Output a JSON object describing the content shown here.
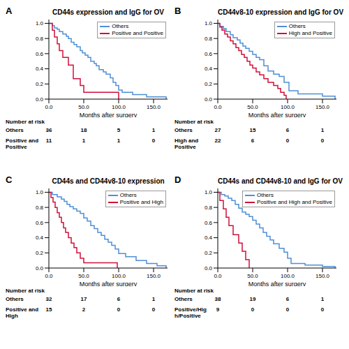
{
  "chart_data": [
    {
      "panel": "A",
      "type": "line",
      "title": "CD44s expression and IgG for OV",
      "x_label": "Months after surgery",
      "xlim": [
        0,
        170
      ],
      "xticks": [
        {
          "value": 0,
          "label": "0.0"
        },
        {
          "value": 50,
          "label": "50.0"
        },
        {
          "value": 100,
          "label": "100.0"
        },
        {
          "value": 150,
          "label": "150.0"
        }
      ],
      "ylim": [
        0,
        1.05
      ],
      "yticks": [
        {
          "value": 0,
          "label": "0.0"
        },
        {
          "value": 0.2,
          "label": "0.2"
        },
        {
          "value": 0.4,
          "label": "0.4"
        },
        {
          "value": 0.6,
          "label": "0.6"
        },
        {
          "value": 0.8,
          "label": "0.8"
        },
        {
          "value": 1,
          "label": "1.0"
        }
      ],
      "legend": "top-right",
      "series": [
        {
          "name": "Others",
          "color": "#4f8fd6",
          "line_style": "step",
          "x": [
            0,
            5,
            8,
            12,
            15,
            20,
            25,
            28,
            32,
            36,
            40,
            45,
            48,
            52,
            56,
            60,
            65,
            68,
            72,
            78,
            82,
            88,
            92,
            96,
            100,
            105,
            120,
            140,
            168
          ],
          "values": [
            1.0,
            0.97,
            0.94,
            0.92,
            0.89,
            0.86,
            0.83,
            0.8,
            0.75,
            0.72,
            0.69,
            0.64,
            0.61,
            0.58,
            0.55,
            0.5,
            0.47,
            0.44,
            0.39,
            0.36,
            0.33,
            0.28,
            0.22,
            0.18,
            0.12,
            0.09,
            0.06,
            0.03,
            0.0
          ]
        },
        {
          "name": "Positive and Positive",
          "color": "#d0103a",
          "line_style": "step",
          "x": [
            0,
            5,
            8,
            12,
            15,
            20,
            28,
            35,
            45,
            50,
            100
          ],
          "values": [
            1.0,
            0.91,
            0.82,
            0.73,
            0.64,
            0.55,
            0.45,
            0.27,
            0.18,
            0.09,
            0.0
          ]
        }
      ],
      "risk_table": {
        "title": "Number at risk",
        "x": [
          0,
          50,
          100,
          150
        ],
        "rows": [
          {
            "name": "Others",
            "values": [
              36,
              18,
              5,
              1
            ]
          },
          {
            "name": "Positive and Positive",
            "values": [
              11,
              1,
              1,
              0
            ]
          }
        ]
      }
    },
    {
      "panel": "B",
      "type": "line",
      "title": "CD44v8-10 expression and IgG for OV",
      "x_label": "Months after surgery",
      "xlim": [
        0,
        170
      ],
      "xticks": [
        {
          "value": 0,
          "label": "0.0"
        },
        {
          "value": 50,
          "label": "50.0"
        },
        {
          "value": 100,
          "label": "100.0"
        },
        {
          "value": 150,
          "label": "150.0"
        }
      ],
      "ylim": [
        0,
        1.05
      ],
      "yticks": [
        {
          "value": 0,
          "label": "0.0"
        },
        {
          "value": 0.2,
          "label": "0.2"
        },
        {
          "value": 0.4,
          "label": "0.4"
        },
        {
          "value": 0.6,
          "label": "0.6"
        },
        {
          "value": 0.8,
          "label": "0.8"
        },
        {
          "value": 1,
          "label": "1.0"
        }
      ],
      "legend": "top-right",
      "series": [
        {
          "name": "Others",
          "color": "#4f8fd6",
          "line_style": "step",
          "x": [
            0,
            3,
            8,
            12,
            18,
            22,
            28,
            32,
            36,
            40,
            45,
            50,
            55,
            60,
            66,
            72,
            80,
            88,
            95,
            102,
            115,
            150,
            168
          ],
          "values": [
            1.0,
            0.96,
            0.93,
            0.89,
            0.85,
            0.81,
            0.78,
            0.74,
            0.7,
            0.67,
            0.63,
            0.59,
            0.55,
            0.52,
            0.44,
            0.37,
            0.33,
            0.3,
            0.22,
            0.11,
            0.07,
            0.04,
            0.0
          ]
        },
        {
          "name": "High and Positive",
          "color": "#d0103a",
          "line_style": "step",
          "x": [
            0,
            3,
            6,
            10,
            14,
            18,
            22,
            26,
            30,
            34,
            38,
            42,
            46,
            50,
            55,
            60,
            66,
            72,
            80,
            86,
            90,
            95,
            98
          ],
          "values": [
            1.0,
            0.95,
            0.91,
            0.86,
            0.82,
            0.77,
            0.73,
            0.68,
            0.64,
            0.59,
            0.55,
            0.5,
            0.45,
            0.41,
            0.36,
            0.32,
            0.27,
            0.22,
            0.18,
            0.14,
            0.09,
            0.05,
            0.0
          ]
        }
      ],
      "risk_table": {
        "title": "Number at risk",
        "x": [
          0,
          50,
          100,
          150
        ],
        "rows": [
          {
            "name": "Others",
            "values": [
              27,
              15,
              6,
              1
            ]
          },
          {
            "name": "High and Positive",
            "values": [
              22,
              6,
              0,
              0
            ]
          }
        ]
      }
    },
    {
      "panel": "C",
      "type": "line",
      "title": "CD44s and CD44v8-10 expression",
      "x_label": "Months after surgery",
      "xlim": [
        0,
        170
      ],
      "xticks": [
        {
          "value": 0,
          "label": "0.0"
        },
        {
          "value": 50,
          "label": "50.0"
        },
        {
          "value": 100,
          "label": "100.0"
        },
        {
          "value": 150,
          "label": "150.0"
        }
      ],
      "ylim": [
        0,
        1.05
      ],
      "yticks": [
        {
          "value": 0,
          "label": "0.0"
        },
        {
          "value": 0.2,
          "label": "0.2"
        },
        {
          "value": 0.4,
          "label": "0.4"
        },
        {
          "value": 0.6,
          "label": "0.6"
        },
        {
          "value": 0.8,
          "label": "0.8"
        },
        {
          "value": 1,
          "label": "1.0"
        }
      ],
      "legend": "top-right",
      "series": [
        {
          "name": "Others",
          "color": "#4f8fd6",
          "line_style": "step",
          "x": [
            0,
            5,
            12,
            18,
            22,
            26,
            30,
            35,
            40,
            45,
            50,
            55,
            60,
            65,
            70,
            75,
            80,
            85,
            90,
            95,
            100,
            110,
            125,
            140,
            155,
            168
          ],
          "values": [
            1.0,
            0.97,
            0.94,
            0.91,
            0.88,
            0.84,
            0.81,
            0.78,
            0.75,
            0.72,
            0.66,
            0.62,
            0.56,
            0.52,
            0.47,
            0.43,
            0.38,
            0.34,
            0.3,
            0.25,
            0.19,
            0.15,
            0.1,
            0.06,
            0.03,
            0.0
          ]
        },
        {
          "name": "Positive and High",
          "color": "#d0103a",
          "line_style": "step",
          "x": [
            0,
            3,
            6,
            9,
            12,
            15,
            18,
            21,
            24,
            28,
            32,
            36,
            40,
            45,
            50,
            98
          ],
          "values": [
            1.0,
            0.93,
            0.87,
            0.8,
            0.73,
            0.67,
            0.6,
            0.53,
            0.47,
            0.4,
            0.33,
            0.27,
            0.2,
            0.13,
            0.07,
            0.0
          ]
        }
      ],
      "risk_table": {
        "title": "Number at risk",
        "x": [
          0,
          50,
          100,
          150
        ],
        "rows": [
          {
            "name": "Others",
            "values": [
              32,
              17,
              6,
              1
            ]
          },
          {
            "name": "Positive and High",
            "values": [
              15,
              2,
              0,
              0
            ]
          }
        ]
      }
    },
    {
      "panel": "D",
      "type": "line",
      "title": "CD44s and CD44v8-10 and IgG for OV",
      "x_label": "Months after surgery",
      "xlim": [
        0,
        170
      ],
      "xticks": [
        {
          "value": 0,
          "label": "0.0"
        },
        {
          "value": 50,
          "label": "50.0"
        },
        {
          "value": 100,
          "label": "100.0"
        },
        {
          "value": 150,
          "label": "150.0"
        }
      ],
      "ylim": [
        0,
        1.05
      ],
      "yticks": [
        {
          "value": 0,
          "label": "0.0"
        },
        {
          "value": 0.2,
          "label": "0.2"
        },
        {
          "value": 0.4,
          "label": "0.4"
        },
        {
          "value": 0.6,
          "label": "0.6"
        },
        {
          "value": 0.8,
          "label": "0.8"
        },
        {
          "value": 1,
          "label": "1.0"
        }
      ],
      "legend": "top-right",
      "series": [
        {
          "name": "Others",
          "color": "#4f8fd6",
          "line_style": "step",
          "x": [
            0,
            5,
            10,
            15,
            20,
            25,
            30,
            35,
            40,
            45,
            50,
            55,
            60,
            65,
            70,
            75,
            80,
            88,
            95,
            100,
            105,
            125,
            150,
            168
          ],
          "values": [
            1.0,
            0.97,
            0.95,
            0.92,
            0.89,
            0.84,
            0.79,
            0.74,
            0.71,
            0.68,
            0.63,
            0.58,
            0.53,
            0.47,
            0.42,
            0.37,
            0.32,
            0.26,
            0.21,
            0.13,
            0.06,
            0.04,
            0.02,
            0.0
          ]
        },
        {
          "name": "Positive and High and Positive",
          "color": "#d0103a",
          "line_style": "step",
          "x": [
            0,
            3,
            8,
            12,
            16,
            22,
            30,
            35,
            40,
            45
          ],
          "values": [
            1.0,
            0.89,
            0.78,
            0.67,
            0.56,
            0.44,
            0.33,
            0.22,
            0.11,
            0.0
          ]
        }
      ],
      "risk_table": {
        "title": "Number at risk",
        "x": [
          0,
          50,
          100,
          150
        ],
        "rows": [
          {
            "name": "Others",
            "values": [
              38,
              19,
              6,
              1
            ]
          },
          {
            "name": "Positive/High/Positive",
            "values": [
              9,
              0,
              0,
              0
            ]
          }
        ]
      }
    }
  ]
}
